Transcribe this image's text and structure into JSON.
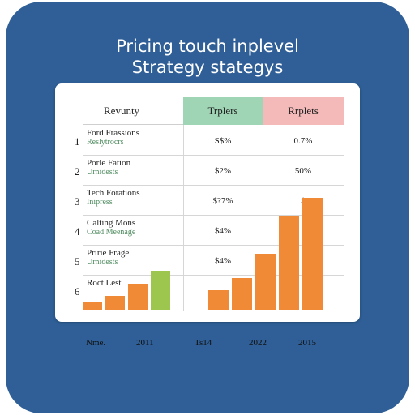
{
  "chart_data": {
    "type": "table",
    "title_line1": "Pricing touch inplevel",
    "title_line2": "Strategy stategys",
    "columns": [
      "Revunty",
      "Trplers",
      "Rrplets"
    ],
    "rows": [
      {
        "num": "1",
        "name": "Ford Frassions",
        "sub": "Reslytrocrs",
        "v1": "S$%",
        "v2": "0.7%"
      },
      {
        "num": "2",
        "name": "Porle Fation",
        "sub": "Urnidests",
        "v1": "$2%",
        "v2": "50%"
      },
      {
        "num": "3",
        "name": "Tech Forations",
        "sub": "Inipress",
        "v1": "$?7%",
        "v2": "$"
      },
      {
        "num": "4",
        "name": "Calting Mons",
        "sub": "Coad Meenage",
        "v1": "$4%",
        "v2": ""
      },
      {
        "num": "5",
        "name": "Pririe Frage",
        "sub": "Urnidests",
        "v1": "$4%",
        "v2": ""
      },
      {
        "num": "6",
        "name": "Roct Lest",
        "sub": "",
        "v1": "",
        "v2": ""
      }
    ],
    "xlabels": [
      "Nme.",
      "2011",
      "Ts14",
      "2022",
      "2015"
    ],
    "series": [
      {
        "values": [
          10,
          17,
          32,
          48
        ],
        "colors": [
          "#f08a36",
          "#f08a36",
          "#f08a36",
          "#9cc64d"
        ]
      },
      {
        "values": [
          24,
          39,
          69,
          116,
          138
        ],
        "colors": [
          "#f08a36",
          "#f08a36",
          "#f08a36",
          "#f08a36",
          "#f08a36"
        ]
      }
    ],
    "ylim": [
      0,
      140
    ]
  }
}
